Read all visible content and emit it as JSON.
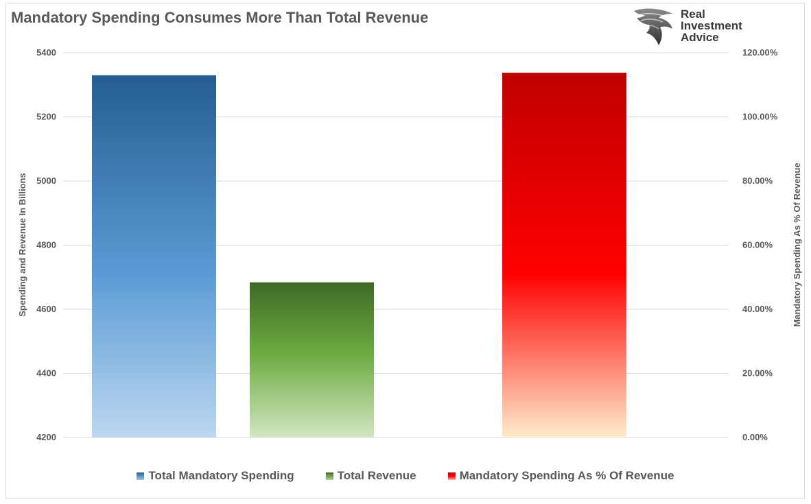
{
  "title": "Mandatory Spending Consumes More Than Total Revenue",
  "logo": {
    "lines": [
      "Real",
      "Investment",
      "Advice"
    ],
    "icon": "eagle-head-icon"
  },
  "colors": {
    "spending_top": "#255d91",
    "spending_bottom": "#bcd7f0",
    "revenue_top": "#3f6a27",
    "revenue_bottom": "#d2e6c2",
    "pct_top": "#c00000",
    "pct_mid": "#ff0000",
    "pct_bottom": "#ffeccc",
    "axis_text": "#595959",
    "grid": "#d9d9d9"
  },
  "chart_data": {
    "type": "bar",
    "title": "Mandatory Spending Consumes More Than Total Revenue",
    "ylabel_left": "Spending and Revenue In Billions",
    "ylabel_right": "Mandatory Spending As % Of Revenue",
    "y_left": {
      "min": 4200,
      "max": 5400,
      "ticks": [
        "4200",
        "4400",
        "4600",
        "4800",
        "5000",
        "5200",
        "5400"
      ]
    },
    "y_right": {
      "min": 0,
      "max": 1.2,
      "ticks": [
        "0.00%",
        "20.00%",
        "40.00%",
        "60.00%",
        "80.00%",
        "100.00%",
        "120.00%"
      ]
    },
    "grid": true,
    "legend_position": "bottom",
    "series": [
      {
        "name": "Total Mandatory Spending",
        "axis": "left",
        "value": 5330
      },
      {
        "name": "Total Revenue",
        "axis": "left",
        "value": 4684
      },
      {
        "name": "Mandatory Spending As % Of Revenue",
        "axis": "right",
        "value": 1.138
      }
    ]
  }
}
